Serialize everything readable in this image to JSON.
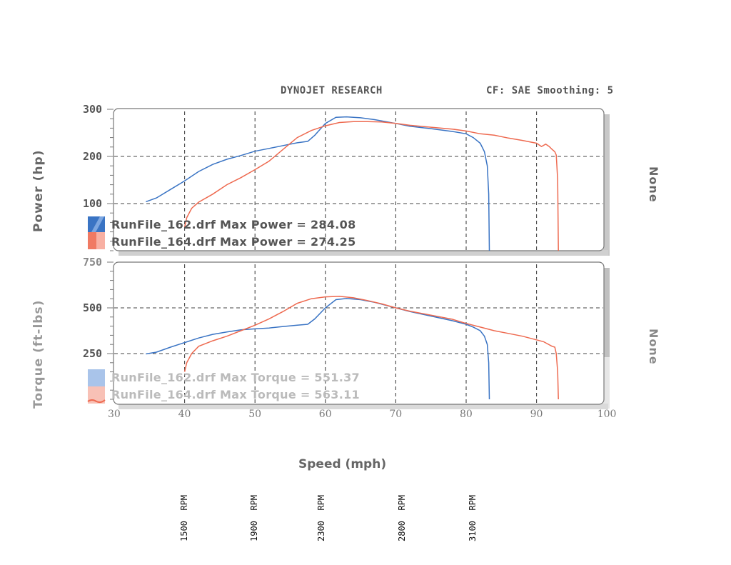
{
  "header": {
    "brand": "DYNOJET RESEARCH",
    "correction": "CF: SAE  Smoothing: 5"
  },
  "power_panel": {
    "ylabel": "Power (hp)",
    "right_label": "None",
    "yticks": [
      "300",
      "200",
      "100"
    ],
    "legend": [
      {
        "text": "RunFile_162.drf Max Power = 284.08",
        "color": "#3a74c4"
      },
      {
        "text": "RunFile_164.drf Max Power = 274.25",
        "color": "#ee6a50"
      }
    ]
  },
  "torque_panel": {
    "ylabel": "Torque (ft-lbs)",
    "right_label": "None",
    "yticks": [
      "750",
      "500",
      "250"
    ],
    "legend": [
      {
        "text": "RunFile_162.drf Max Torque = 551.37",
        "color": "#a9c4ea"
      },
      {
        "text": "RunFile_164.drf Max Torque = 563.11",
        "color": "#f6b3a6"
      }
    ]
  },
  "xaxis": {
    "label": "Speed (mph)",
    "ticks": [
      "30",
      "40",
      "50",
      "60",
      "70",
      "80",
      "90",
      "100"
    ]
  },
  "rpm_markers": [
    {
      "label": "1500 RPM",
      "mph": 40
    },
    {
      "label": "1900 RPM",
      "mph": 50
    },
    {
      "label": "2300 RPM",
      "mph": 59.5
    },
    {
      "label": "2800 RPM",
      "mph": 71
    },
    {
      "label": "3100 RPM",
      "mph": 81
    }
  ],
  "chart_data": [
    {
      "type": "line",
      "title": "DYNOJET RESEARCH — Power",
      "subtitle": "CF: SAE  Smoothing: 5",
      "xlabel": "Speed (mph)",
      "ylabel": "Power (hp)",
      "xlim": [
        30,
        100
      ],
      "ylim": [
        0,
        300
      ],
      "grid": true,
      "legend_position": "lower-left",
      "series": [
        {
          "name": "RunFile_162.drf",
          "max_label": "Max Power = 284.08",
          "color": "#3a74c4",
          "x": [
            34.5,
            36,
            38,
            40,
            42,
            44,
            46,
            48,
            50,
            52,
            54,
            56,
            57.5,
            58.5,
            60,
            61.5,
            63,
            65,
            67,
            70,
            72,
            75,
            78,
            80,
            81,
            82,
            82.6,
            83,
            83.2,
            83.3
          ],
          "y": [
            104,
            112,
            130,
            148,
            168,
            183,
            194,
            202,
            211,
            217,
            223,
            229,
            232,
            245,
            270,
            283,
            284,
            282,
            278,
            270,
            264,
            259,
            253,
            248,
            240,
            228,
            210,
            180,
            120,
            0
          ]
        },
        {
          "name": "RunFile_164.drf",
          "max_label": "Max Power = 274.25",
          "color": "#ee6a50",
          "x": [
            40,
            40.3,
            41,
            42,
            44,
            46,
            48,
            50,
            52,
            54,
            56,
            58,
            60,
            62,
            64,
            66,
            68,
            70,
            72,
            75,
            78,
            80,
            82,
            84,
            86,
            88,
            90,
            90.7,
            91.3,
            91.8,
            92.2,
            92.6,
            92.8,
            93.0,
            93.1
          ],
          "y": [
            50,
            70,
            90,
            103,
            120,
            140,
            155,
            172,
            190,
            215,
            240,
            255,
            265,
            272,
            274,
            274,
            273,
            270,
            266,
            262,
            258,
            254,
            248,
            245,
            239,
            234,
            228,
            221,
            226,
            221,
            215,
            210,
            203,
            150,
            0
          ]
        }
      ]
    },
    {
      "type": "line",
      "title": "DYNOJET RESEARCH — Torque",
      "xlabel": "Speed (mph)",
      "ylabel": "Torque (ft-lbs)",
      "xlim": [
        30,
        100
      ],
      "ylim": [
        0,
        750
      ],
      "grid": true,
      "legend_position": "lower-left",
      "series": [
        {
          "name": "RunFile_162.drf",
          "max_label": "Max Torque = 551.37",
          "color": "#3a74c4",
          "x": [
            34.5,
            36,
            38,
            40,
            42,
            44,
            46,
            48,
            50,
            52,
            54,
            56,
            57.5,
            58.5,
            60,
            61.5,
            63,
            65,
            67,
            70,
            72,
            75,
            78,
            80,
            81,
            82,
            82.6,
            83,
            83.2,
            83.3
          ],
          "y": [
            248,
            258,
            285,
            310,
            335,
            355,
            368,
            380,
            385,
            390,
            398,
            405,
            410,
            440,
            500,
            545,
            551,
            545,
            530,
            500,
            480,
            455,
            430,
            410,
            395,
            375,
            345,
            300,
            200,
            0
          ]
        },
        {
          "name": "RunFile_164.drf",
          "max_label": "Max Torque = 563.11",
          "color": "#ee6a50",
          "x": [
            40,
            40.3,
            41,
            42,
            44,
            46,
            48,
            50,
            52,
            54,
            56,
            58,
            60,
            62,
            64,
            66,
            68,
            70,
            72,
            75,
            78,
            80,
            82,
            84,
            86,
            88,
            90,
            91,
            92.2,
            92.6,
            92.8,
            93.0,
            93.1
          ],
          "y": [
            150,
            200,
            250,
            290,
            320,
            345,
            375,
            405,
            440,
            480,
            525,
            550,
            560,
            563,
            555,
            540,
            522,
            500,
            482,
            460,
            438,
            415,
            395,
            375,
            360,
            345,
            325,
            315,
            290,
            285,
            250,
            150,
            0
          ]
        }
      ]
    }
  ]
}
